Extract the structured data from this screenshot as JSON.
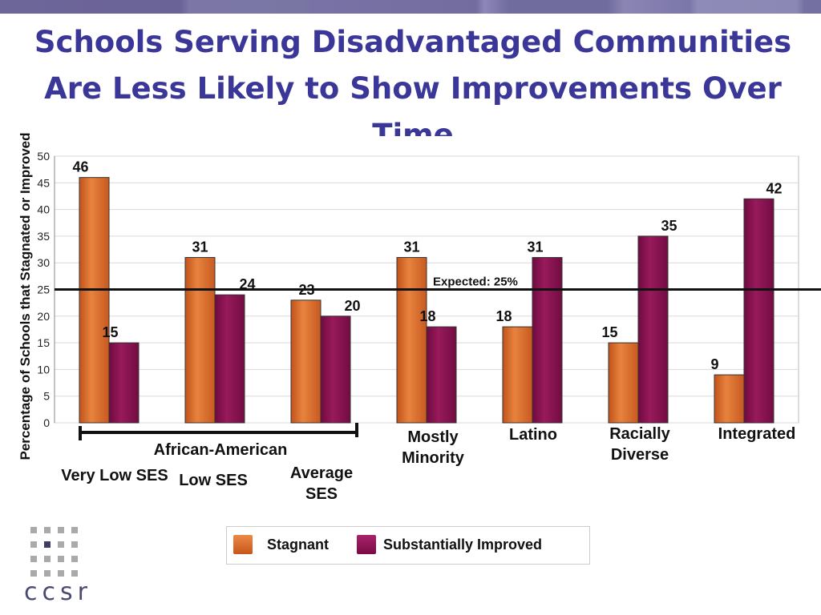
{
  "title": "Schools Serving Disadvantaged Communities Are Less Likely to Show Improvements Over Time",
  "logo_text": "ccsr",
  "colors": {
    "stagnant": "#d9682a",
    "improved": "#8a0f4f",
    "title": "#3b3799"
  },
  "chart_data": {
    "type": "bar",
    "title": "Schools Serving Disadvantaged Communities Are Less Likely to Show Improvements Over Time",
    "ylabel": "Percentage of Schools that Stagnated or Improved",
    "ylim": [
      0,
      50
    ],
    "yticks": [
      0,
      5,
      10,
      15,
      20,
      25,
      30,
      35,
      40,
      45,
      50
    ],
    "grid": true,
    "categories": [
      "Very Low SES",
      "Low SES",
      "Average SES",
      "Mostly Minority",
      "Latino",
      "Racially Diverse",
      "Integrated"
    ],
    "group_label": "African-American",
    "series": [
      {
        "name": "Stagnant",
        "values": [
          46,
          31,
          23,
          31,
          18,
          15,
          9
        ]
      },
      {
        "name": "Substantially Improved",
        "values": [
          15,
          24,
          20,
          18,
          31,
          35,
          42
        ]
      }
    ],
    "reference_line": {
      "value": 25,
      "label": "Expected: 25%"
    },
    "legend": "bottom"
  }
}
